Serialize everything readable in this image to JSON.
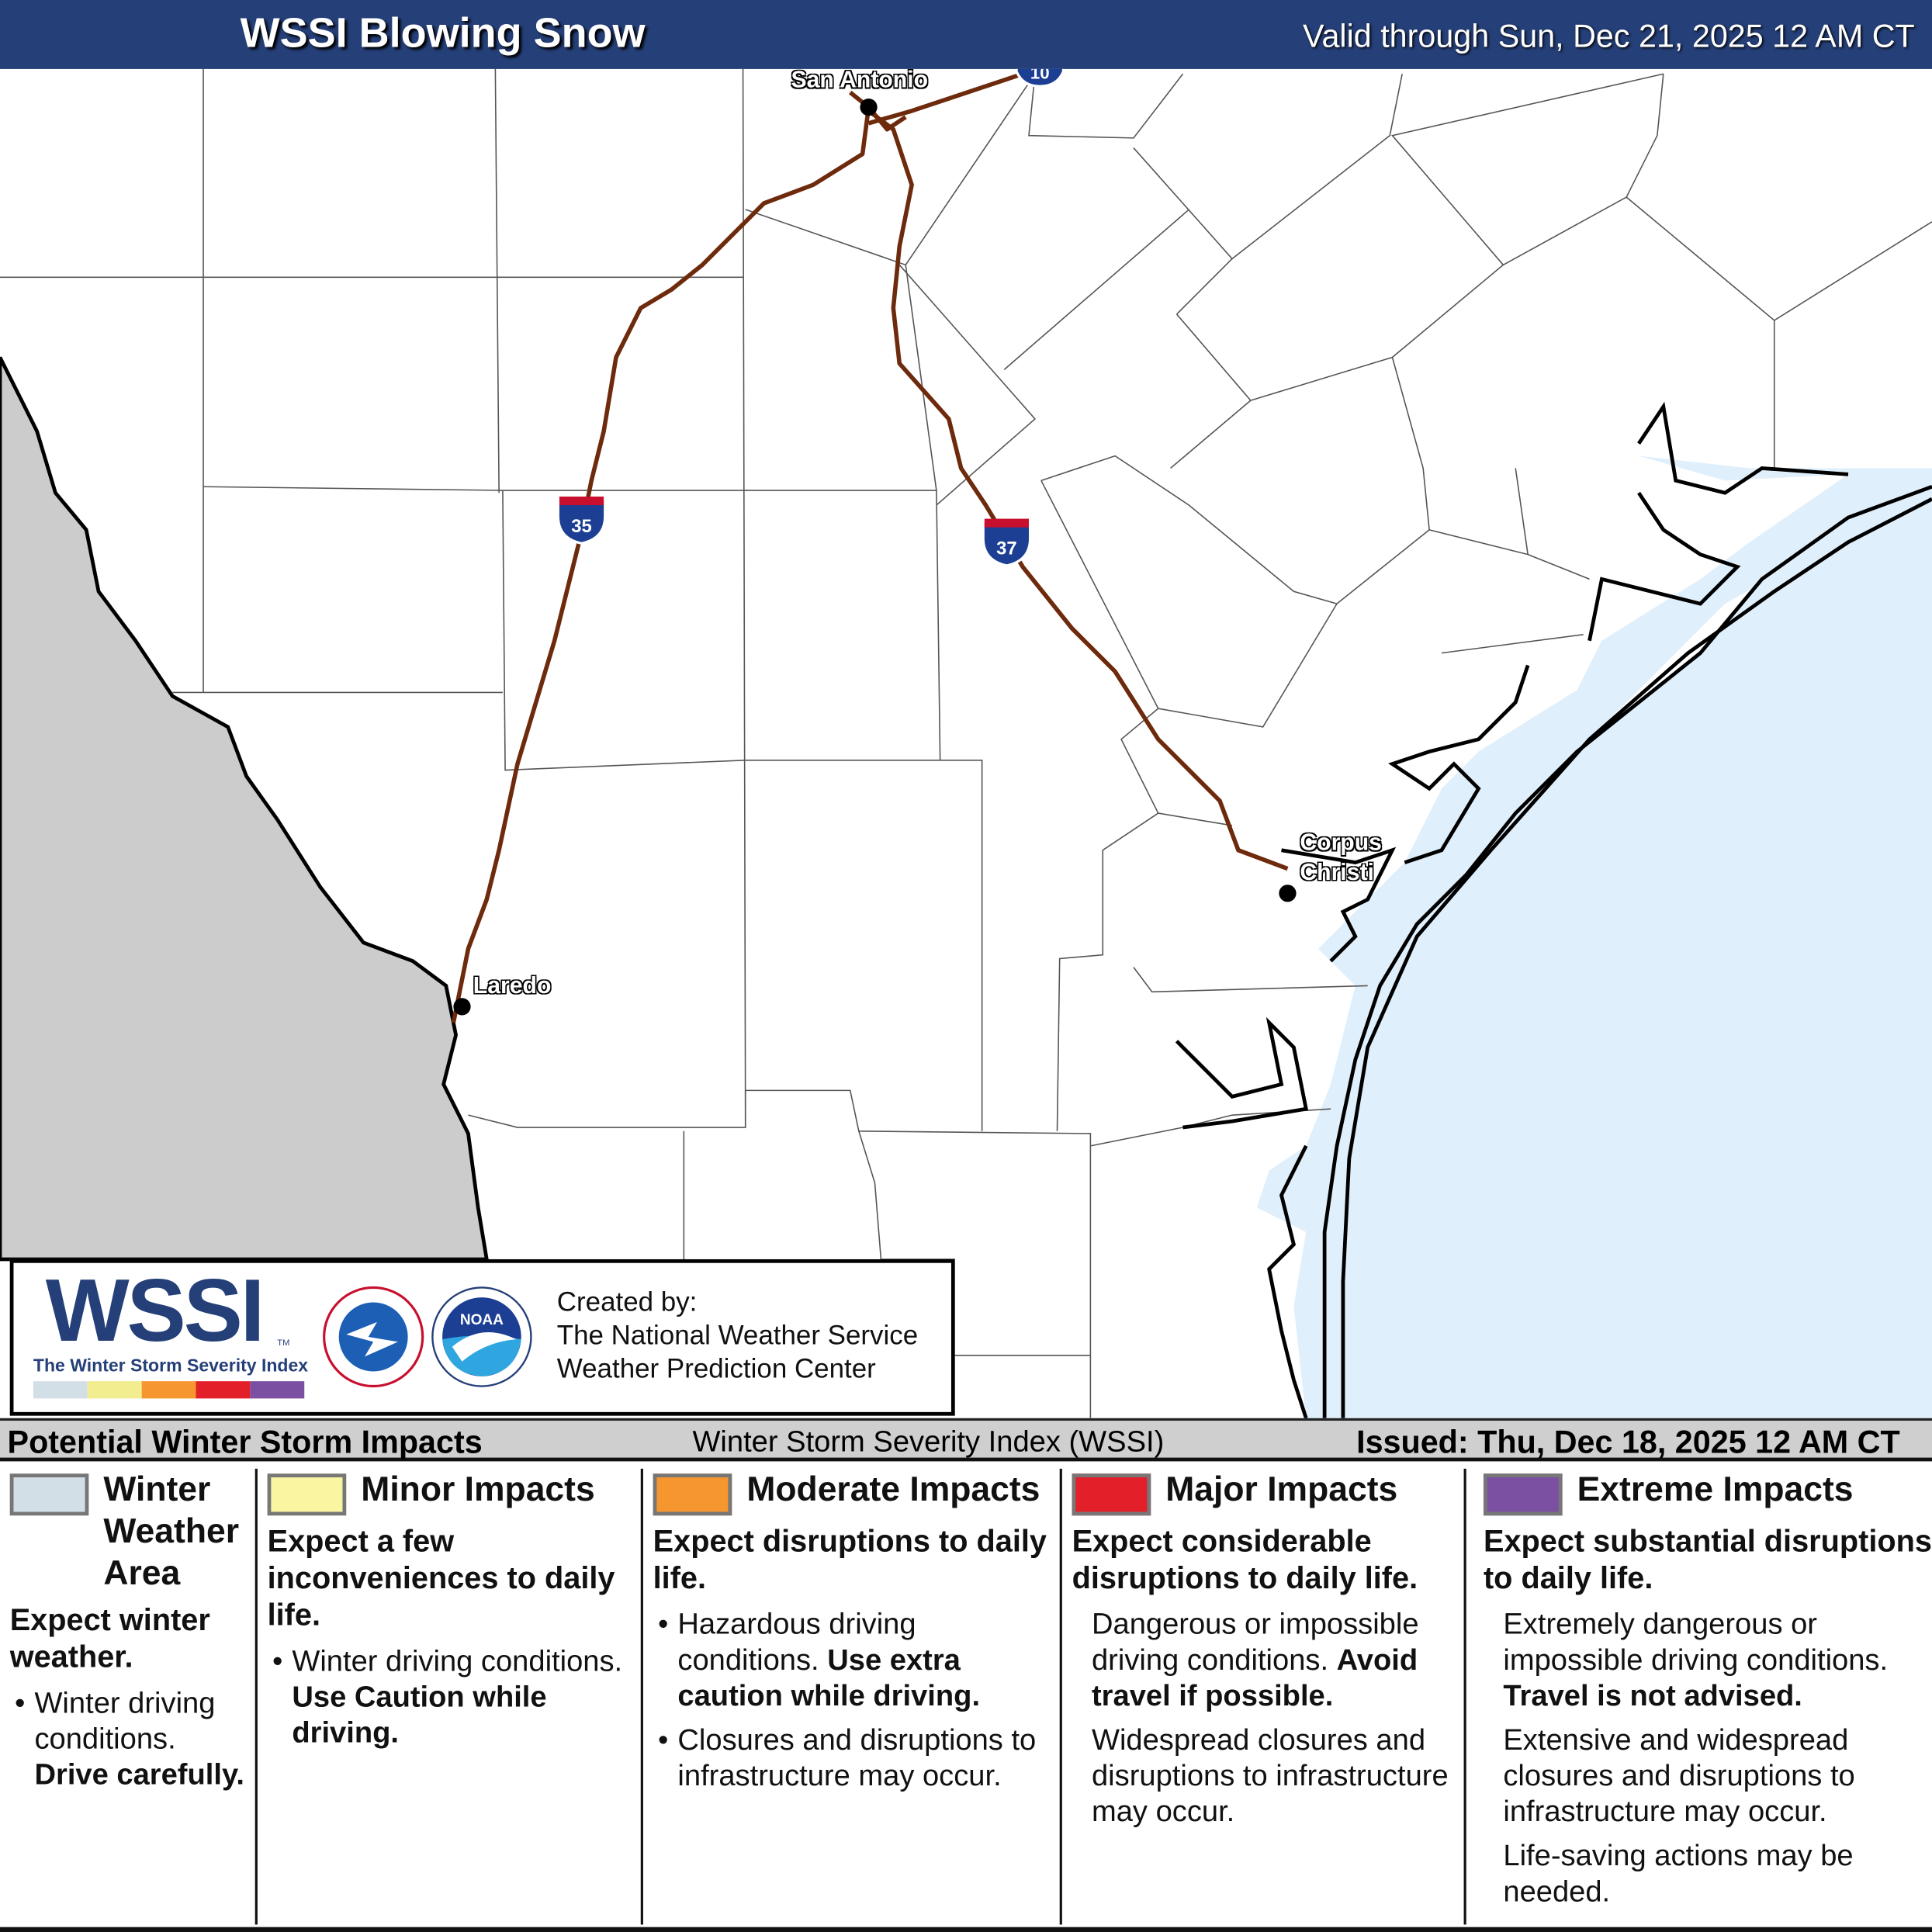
{
  "header": {
    "title": "WSSI Blowing Snow",
    "valid": "Valid through Sun, Dec 21, 2025 12 AM CT"
  },
  "map": {
    "cities": [
      {
        "name": "San Antonio"
      },
      {
        "name": "Corpus"
      },
      {
        "name": "Christi"
      },
      {
        "name": "Laredo"
      }
    ],
    "highways": [
      {
        "shield": "35"
      },
      {
        "shield": "37"
      },
      {
        "shield": "10"
      }
    ],
    "colors": {
      "land": "#ffffff",
      "mexico": "#cccccc",
      "water": "#dfeffb",
      "highway": "#6e2a0c",
      "county": "#555555"
    }
  },
  "logo": {
    "wssi": "WSSI",
    "tm": "TM",
    "subtitle": "The Winter Storm Severity Index",
    "created": [
      "Created by:",
      "The National Weather Service",
      "Weather Prediction Center"
    ],
    "nws_text": "NATIONAL WEATHER SERVICE",
    "noaa_text": "NOAA"
  },
  "legend": {
    "title": "Potential Winter Storm Impacts",
    "index_name": "Winter Storm Severity Index (WSSI)",
    "issued": "Issued: Thu, Dec 18, 2025 12 AM CT",
    "categories": [
      {
        "name": "Winter Weather Area",
        "color": "#d3dfe6",
        "summary": "Expect winter weather.",
        "b1": "Winter driving conditions.",
        "b1_bold": "Drive carefully."
      },
      {
        "name": "Minor Impacts",
        "color": "#faf5a0",
        "summary": "Expect a few inconveniences to daily life.",
        "b1": "Winter driving conditions.",
        "b1_bold": "Use Caution while driving."
      },
      {
        "name": "Moderate Impacts",
        "color": "#f5962f",
        "summary": "Expect disruptions to daily life.",
        "b1": "Hazardous driving conditions.",
        "b1_bold": "Use extra caution while driving.",
        "b2": "Closures and disruptions to infrastructure may occur."
      },
      {
        "name": "Major Impacts",
        "color": "#e3202a",
        "summary": "Expect considerable disruptions to daily life.",
        "b1": "Dangerous or impossible driving conditions.",
        "b1_bold": "Avoid travel if possible.",
        "b2": "Widespread closures and disruptions to infrastructure may occur."
      },
      {
        "name": "Extreme Impacts",
        "color": "#7b50a3",
        "summary": "Expect substantial disruptions to daily life.",
        "b1": "Extremely dangerous or impossible driving conditions.",
        "b1_bold": "Travel is not advised.",
        "b2": "Extensive and widespread closures and disruptions to infrastructure may occur.",
        "b3": "Life-saving actions may be needed."
      }
    ]
  }
}
